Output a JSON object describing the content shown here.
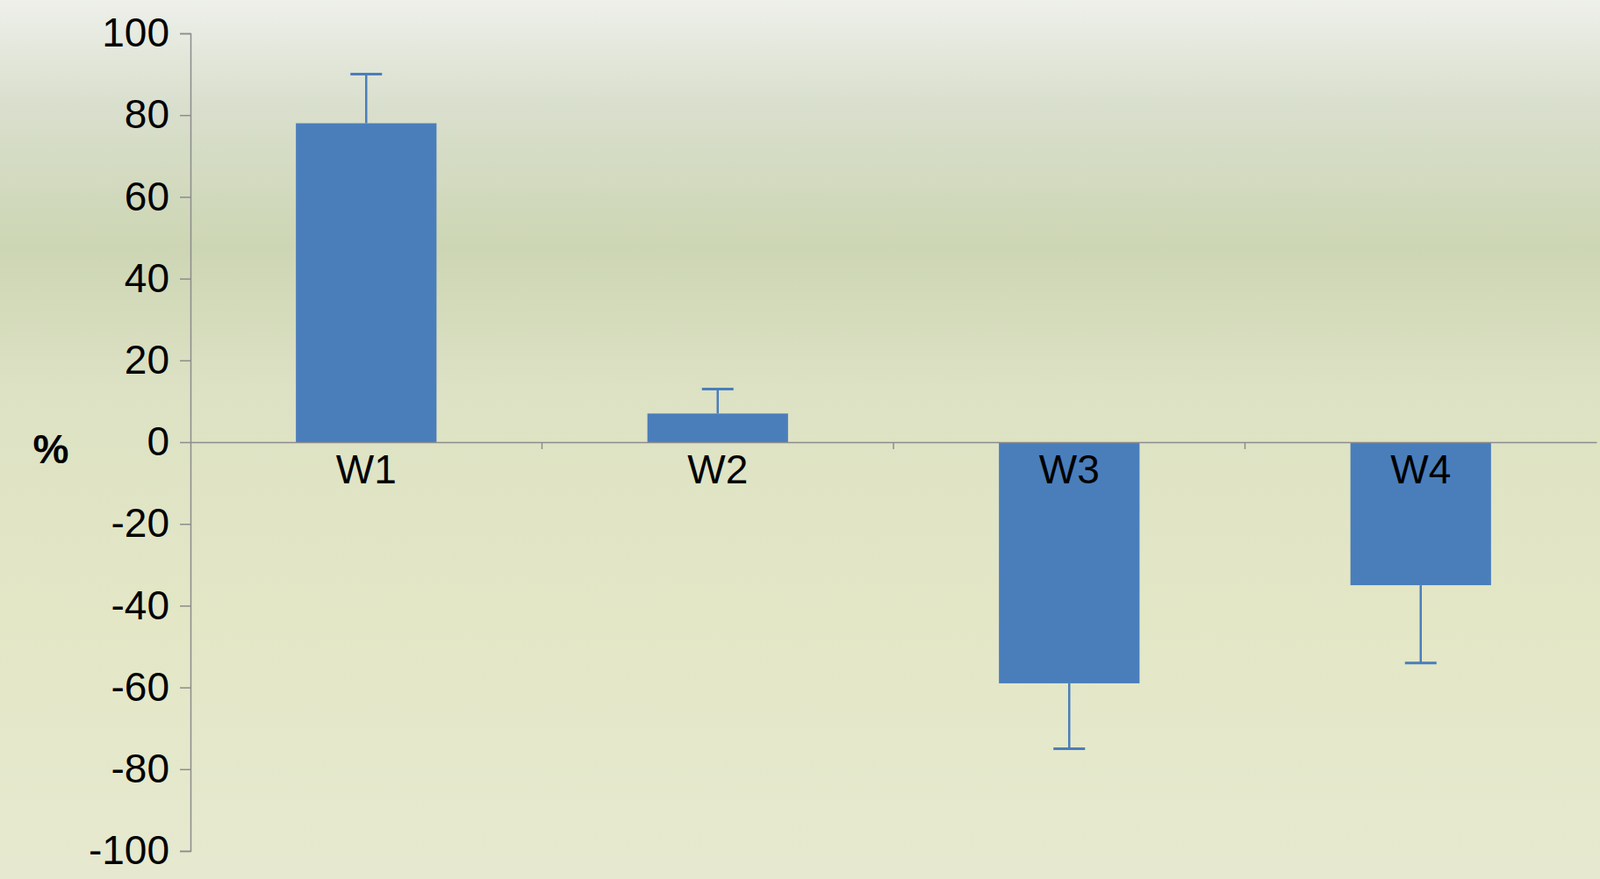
{
  "chart_data": {
    "type": "bar",
    "y_label": "%",
    "categories": [
      "W1",
      "W2",
      "W3",
      "W4"
    ],
    "values": [
      78,
      7,
      -59,
      -35
    ],
    "errors": [
      12,
      6,
      16,
      19
    ],
    "color": "#4a7ebb",
    "ylim": [
      -100,
      100
    ],
    "yticks": [
      -100,
      -80,
      -60,
      -40,
      -20,
      0,
      20,
      40,
      60,
      80,
      100
    ]
  }
}
